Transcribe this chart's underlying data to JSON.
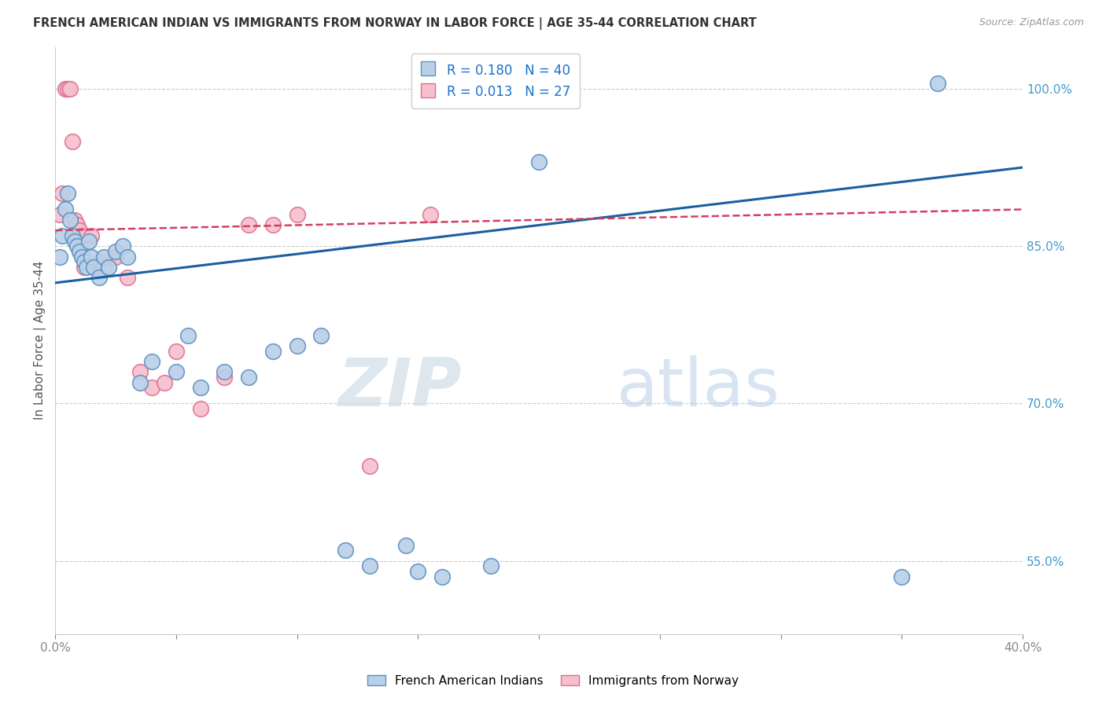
{
  "title": "FRENCH AMERICAN INDIAN VS IMMIGRANTS FROM NORWAY IN LABOR FORCE | AGE 35-44 CORRELATION CHART",
  "source": "Source: ZipAtlas.com",
  "ylabel": "In Labor Force | Age 35-44",
  "xlim": [
    0.0,
    40.0
  ],
  "ylim": [
    48.0,
    104.0
  ],
  "xticks": [
    0.0,
    5.0,
    10.0,
    15.0,
    20.0,
    25.0,
    30.0,
    35.0,
    40.0
  ],
  "xticklabels": [
    "0.0%",
    "",
    "",
    "",
    "",
    "",
    "",
    "",
    "40.0%"
  ],
  "ytick_positions": [
    55.0,
    70.0,
    85.0,
    100.0
  ],
  "yticklabels": [
    "55.0%",
    "70.0%",
    "85.0%",
    "100.0%"
  ],
  "blue_R": 0.18,
  "blue_N": 40,
  "pink_R": 0.013,
  "pink_N": 27,
  "blue_color": "#b8d0e8",
  "blue_edge": "#6090c0",
  "pink_color": "#f5bfcc",
  "pink_edge": "#e07090",
  "trendline_blue": "#1a5fa0",
  "trendline_pink": "#d04060",
  "legend_label_blue": "French American Indians",
  "legend_label_pink": "Immigrants from Norway",
  "watermark_zip": "ZIP",
  "watermark_atlas": "atlas",
  "blue_x": [
    0.2,
    0.3,
    0.4,
    0.5,
    0.6,
    0.7,
    0.8,
    0.9,
    1.0,
    1.1,
    1.2,
    1.3,
    1.4,
    1.5,
    1.6,
    1.8,
    2.0,
    2.2,
    2.5,
    2.8,
    3.0,
    3.5,
    4.0,
    5.0,
    5.5,
    6.0,
    7.0,
    8.0,
    9.0,
    10.0,
    11.0,
    12.0,
    13.0,
    14.5,
    15.0,
    16.0,
    18.0,
    20.0,
    35.0,
    36.5
  ],
  "blue_y": [
    84.0,
    86.0,
    88.5,
    90.0,
    87.5,
    86.0,
    85.5,
    85.0,
    84.5,
    84.0,
    83.5,
    83.0,
    85.5,
    84.0,
    83.0,
    82.0,
    84.0,
    83.0,
    84.5,
    85.0,
    84.0,
    72.0,
    74.0,
    73.0,
    76.5,
    71.5,
    73.0,
    72.5,
    75.0,
    75.5,
    76.5,
    56.0,
    54.5,
    56.5,
    54.0,
    53.5,
    54.5,
    93.0,
    53.5,
    100.5
  ],
  "pink_x": [
    0.2,
    0.3,
    0.4,
    0.5,
    0.6,
    0.7,
    0.8,
    0.9,
    1.0,
    1.1,
    1.2,
    1.5,
    1.8,
    2.0,
    2.5,
    3.0,
    3.5,
    4.0,
    4.5,
    5.0,
    6.0,
    7.0,
    8.0,
    9.0,
    10.0,
    13.0,
    15.5
  ],
  "pink_y": [
    88.0,
    90.0,
    100.0,
    100.0,
    100.0,
    95.0,
    87.5,
    87.0,
    86.5,
    86.0,
    83.0,
    86.0,
    83.5,
    83.0,
    84.0,
    82.0,
    73.0,
    71.5,
    72.0,
    75.0,
    69.5,
    72.5,
    87.0,
    87.0,
    88.0,
    64.0,
    88.0
  ]
}
